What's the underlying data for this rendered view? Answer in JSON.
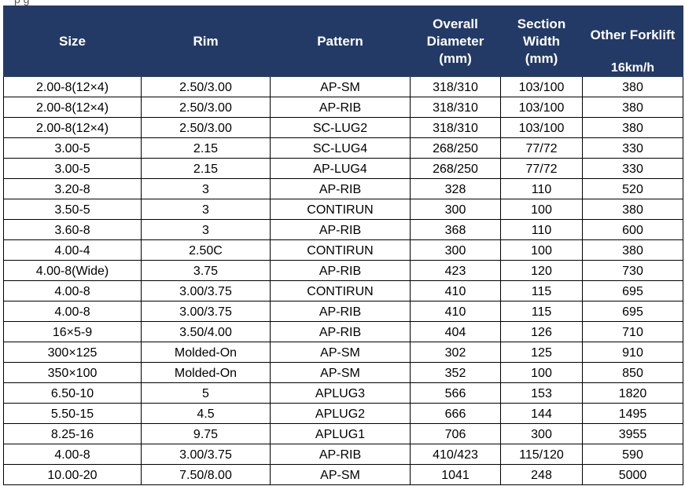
{
  "caption_fragment": "p                                                        g",
  "table": {
    "headers": {
      "size": "Size",
      "rim": "Rim",
      "pattern": "Pattern",
      "overall_diameter": [
        "Overall",
        "Diameter",
        "(mm)"
      ],
      "section_width": [
        "Section",
        "Width",
        "(mm)"
      ],
      "other_forklift": "Other Forklift",
      "speed": "16km/h"
    },
    "rows": [
      [
        "2.00-8(12×4)",
        "2.50/3.00",
        "AP-SM",
        "318/310",
        "103/100",
        "380"
      ],
      [
        "2.00-8(12×4)",
        "2.50/3.00",
        "AP-RIB",
        "318/310",
        "103/100",
        "380"
      ],
      [
        "2.00-8(12×4)",
        "2.50/3.00",
        "SC-LUG2",
        "318/310",
        "103/100",
        "380"
      ],
      [
        "3.00-5",
        "2.15",
        "SC-LUG4",
        "268/250",
        "77/72",
        "330"
      ],
      [
        "3.00-5",
        "2.15",
        "AP-LUG4",
        "268/250",
        "77/72",
        "330"
      ],
      [
        "3.20-8",
        "3",
        "AP-RIB",
        "328",
        "110",
        "520"
      ],
      [
        "3.50-5",
        "3",
        "CONTIRUN",
        "300",
        "100",
        "380"
      ],
      [
        "3.60-8",
        "3",
        "AP-RIB",
        "368",
        "110",
        "600"
      ],
      [
        "4.00-4",
        "2.50C",
        "CONTIRUN",
        "300",
        "100",
        "380"
      ],
      [
        "4.00-8(Wide)",
        "3.75",
        "AP-RIB",
        "423",
        "120",
        "730"
      ],
      [
        "4.00-8",
        "3.00/3.75",
        "CONTIRUN",
        "410",
        "115",
        "695"
      ],
      [
        "4.00-8",
        "3.00/3.75",
        "AP-RIB",
        "410",
        "115",
        "695"
      ],
      [
        "16×5-9",
        "3.50/4.00",
        "AP-RIB",
        "404",
        "126",
        "710"
      ],
      [
        "300×125",
        "Molded-On",
        "AP-SM",
        "302",
        "125",
        "910"
      ],
      [
        "350×100",
        "Molded-On",
        "AP-SM",
        "352",
        "100",
        "850"
      ],
      [
        "6.50-10",
        "5",
        "APLUG3",
        "566",
        "153",
        "1820"
      ],
      [
        "5.50-15",
        "4.5",
        "APLUG2",
        "666",
        "144",
        "1495"
      ],
      [
        "8.25-16",
        "9.75",
        "APLUG1",
        "706",
        "300",
        "3955"
      ],
      [
        "4.00-8",
        "3.00/3.75",
        "AP-RIB",
        "410/423",
        "115/120",
        "590"
      ],
      [
        "10.00-20",
        "7.50/8.00",
        "AP-SM",
        "1041",
        "248",
        "5000"
      ]
    ]
  }
}
